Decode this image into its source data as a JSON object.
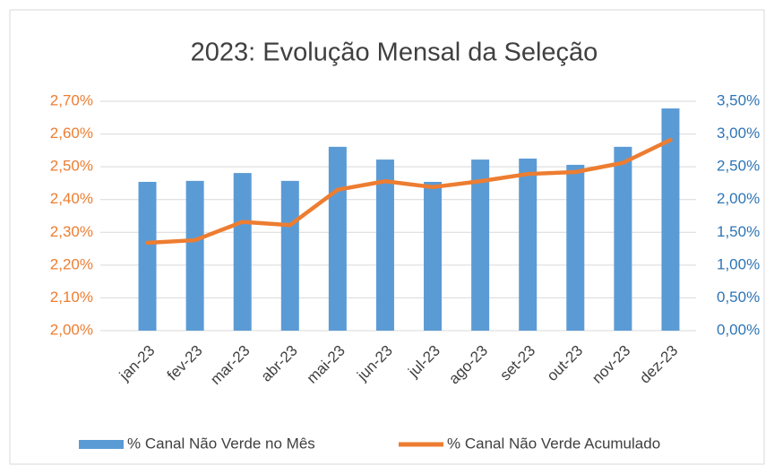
{
  "chart_data": {
    "type": "bar-line",
    "title": "2023: Evolução Mensal da Seleção",
    "categories": [
      "jan-23",
      "fev-23",
      "mar-23",
      "abr-23",
      "mai-23",
      "jun-23",
      "jul-23",
      "ago-23",
      "set-23",
      "out-23",
      "nov-23",
      "dez-23"
    ],
    "series": [
      {
        "name": "% Canal Não Verde no Mês",
        "type": "bar",
        "color": "#5b9bd5",
        "axis": "y",
        "values": [
          2.454,
          2.457,
          2.481,
          2.457,
          2.561,
          2.522,
          2.454,
          2.522,
          2.525,
          2.506,
          2.561,
          2.678
        ]
      },
      {
        "name": "% Canal Não Verde Acumulado",
        "type": "line",
        "color": "#ed7d31",
        "axis": "y2",
        "values": [
          1.34,
          1.38,
          1.66,
          1.61,
          2.15,
          2.28,
          2.19,
          2.28,
          2.39,
          2.42,
          2.56,
          2.91
        ]
      }
    ],
    "ylim": [
      2.0,
      2.7
    ],
    "yticks": [
      {
        "value": 2.0,
        "label": "2,00%"
      },
      {
        "value": 2.1,
        "label": "2,10%"
      },
      {
        "value": 2.2,
        "label": "2,20%"
      },
      {
        "value": 2.3,
        "label": "2,30%"
      },
      {
        "value": 2.4,
        "label": "2,40%"
      },
      {
        "value": 2.5,
        "label": "2,50%"
      },
      {
        "value": 2.6,
        "label": "2,60%"
      },
      {
        "value": 2.7,
        "label": "2,70%"
      }
    ],
    "y2lim": [
      0,
      3.5
    ],
    "y2ticks": [
      {
        "value": 0,
        "label": "0,00%"
      },
      {
        "value": 0.5,
        "label": "0,50%"
      },
      {
        "value": 1.0,
        "label": "1,00%"
      },
      {
        "value": 1.5,
        "label": "1,50%"
      },
      {
        "value": 2.0,
        "label": "2,00%"
      },
      {
        "value": 2.5,
        "label": "2,50%"
      },
      {
        "value": 3.0,
        "label": "3,00%"
      },
      {
        "value": 3.5,
        "label": "3,50%"
      }
    ],
    "grid": true,
    "legend": "bottom",
    "ytick_color": "#ed7d31",
    "y2tick_color": "#2e75b6"
  }
}
